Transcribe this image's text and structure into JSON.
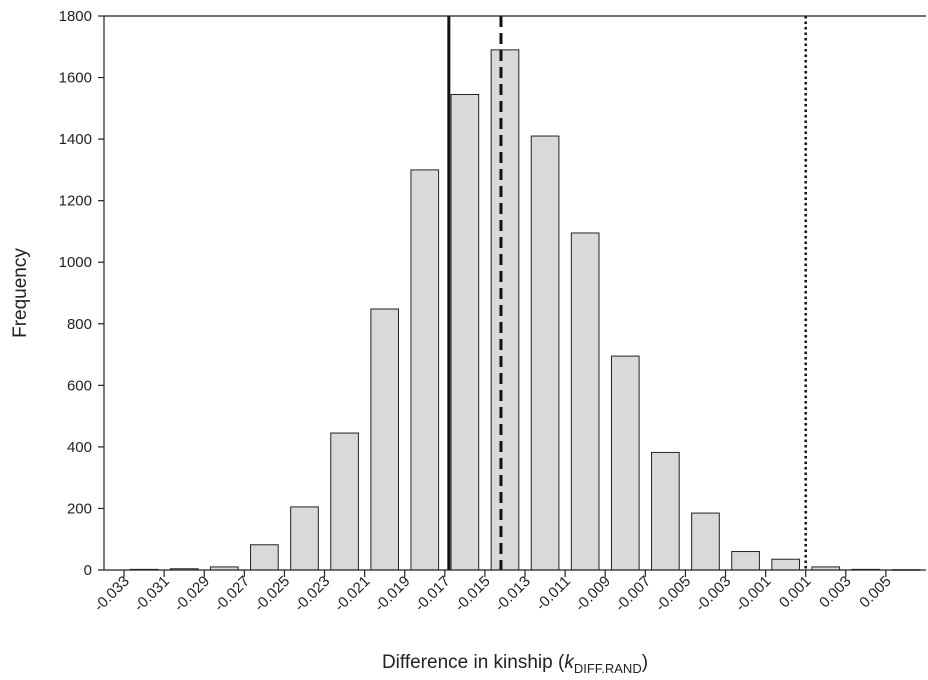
{
  "chart_data": {
    "type": "bar",
    "title": "",
    "xlabel": "Difference in kinship (",
    "xlabel_var": "k",
    "xlabel_sub": "DIFF.RAND",
    "xlabel_close": ")",
    "ylabel": "Frequency",
    "ylim": [
      0,
      1800
    ],
    "yticks": [
      0,
      200,
      400,
      600,
      800,
      1000,
      1200,
      1400,
      1600,
      1800
    ],
    "x_tick_labels": [
      "-0.033",
      "-0.031",
      "-0.029",
      "-0.027",
      "-0.025",
      "-0.023",
      "-0.021",
      "-0.019",
      "-0.017",
      "-0.015",
      "-0.013",
      "-0.011",
      "-0.009",
      "-0.007",
      "-0.005",
      "-0.003",
      "-0.001",
      "0.001",
      "0.003",
      "0.005"
    ],
    "bin_width": 0.002,
    "bins": [
      {
        "x": -0.032,
        "value": 2
      },
      {
        "x": -0.03,
        "value": 4
      },
      {
        "x": -0.028,
        "value": 10
      },
      {
        "x": -0.026,
        "value": 82
      },
      {
        "x": -0.024,
        "value": 205
      },
      {
        "x": -0.022,
        "value": 445
      },
      {
        "x": -0.02,
        "value": 848
      },
      {
        "x": -0.018,
        "value": 1300
      },
      {
        "x": -0.016,
        "value": 1545
      },
      {
        "x": -0.014,
        "value": 1690
      },
      {
        "x": -0.012,
        "value": 1410
      },
      {
        "x": -0.01,
        "value": 1095
      },
      {
        "x": -0.008,
        "value": 695
      },
      {
        "x": -0.006,
        "value": 382
      },
      {
        "x": -0.004,
        "value": 185
      },
      {
        "x": -0.002,
        "value": 60
      },
      {
        "x": 0.0,
        "value": 35
      },
      {
        "x": 0.002,
        "value": 10
      },
      {
        "x": 0.004,
        "value": 2
      },
      {
        "x": 0.006,
        "value": 1
      }
    ],
    "reference_lines": [
      {
        "style": "solid",
        "x": -0.0168
      },
      {
        "style": "dashed",
        "x": -0.0142
      },
      {
        "style": "dotted",
        "x": 0.001
      }
    ],
    "grid": false,
    "legend": "none"
  }
}
